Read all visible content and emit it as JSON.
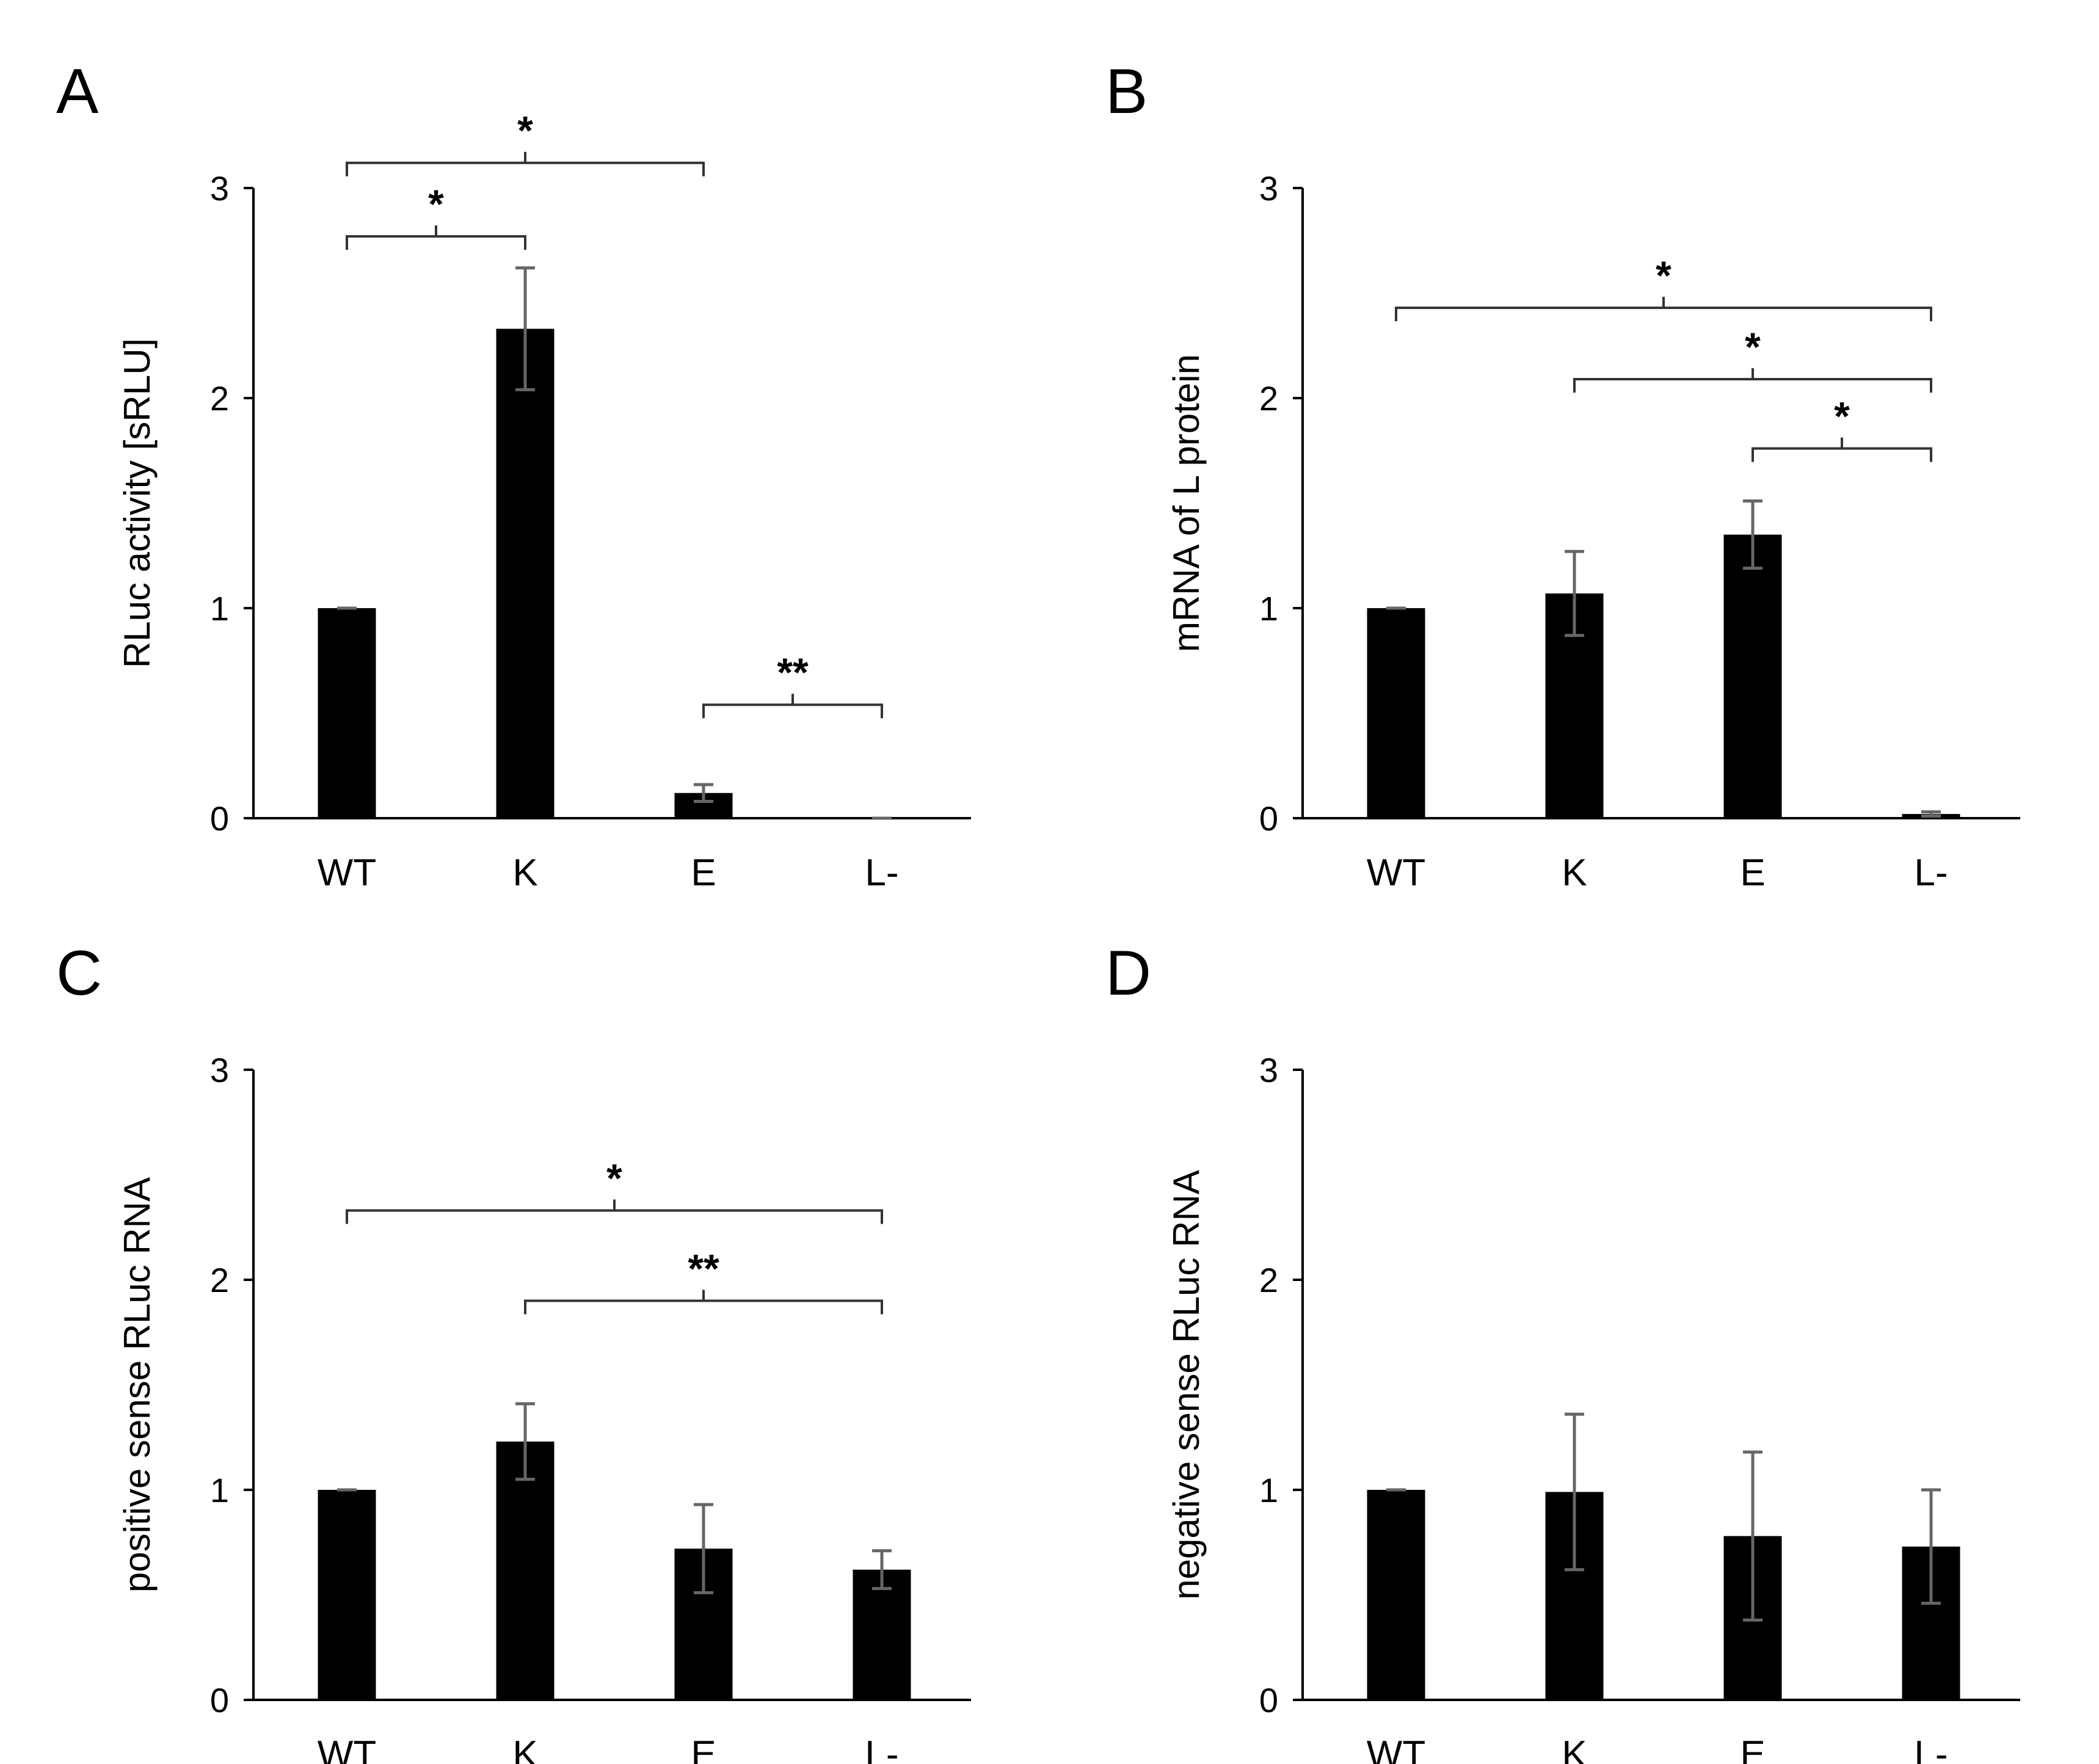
{
  "figure": {
    "panel_count": 4
  },
  "colors": {
    "bar": "#000000",
    "error_bar": "#666666",
    "axis": "#000000",
    "bracket": "#333333"
  },
  "chart_data": [
    {
      "panel": "A",
      "type": "bar",
      "title": "",
      "categories": [
        "WT",
        "K",
        "E",
        "L-"
      ],
      "values": [
        1.0,
        2.33,
        0.12,
        0.0
      ],
      "errors": [
        0.0,
        0.29,
        0.04,
        0.0
      ],
      "xlabel": "",
      "ylabel": "RLuc activity [sRLU]",
      "ylim": [
        0,
        3
      ],
      "yticks": [
        0,
        1,
        2,
        3
      ],
      "grid": false,
      "legend": "none",
      "significance": [
        {
          "from": 0,
          "to": 2,
          "label": "*",
          "level": 3.12
        },
        {
          "from": 0,
          "to": 1,
          "label": "*",
          "level": 2.77
        },
        {
          "from": 2,
          "to": 3,
          "label": "**",
          "level": 0.54
        }
      ]
    },
    {
      "panel": "B",
      "type": "bar",
      "title": "",
      "categories": [
        "WT",
        "K",
        "E",
        "L-"
      ],
      "values": [
        1.0,
        1.07,
        1.35,
        0.02
      ],
      "errors": [
        0.0,
        0.2,
        0.16,
        0.01
      ],
      "xlabel": "",
      "ylabel": "mRNA of L protein",
      "ylim": [
        0,
        3
      ],
      "yticks": [
        0,
        1,
        2,
        3
      ],
      "grid": false,
      "legend": "none",
      "significance": [
        {
          "from": 0,
          "to": 3,
          "label": "*",
          "level": 2.43
        },
        {
          "from": 1,
          "to": 3,
          "label": "*",
          "level": 2.09
        },
        {
          "from": 2,
          "to": 3,
          "label": "*",
          "level": 1.76
        }
      ]
    },
    {
      "panel": "C",
      "type": "bar",
      "title": "",
      "categories": [
        "WT",
        "K",
        "E",
        "L-"
      ],
      "values": [
        1.0,
        1.23,
        0.72,
        0.62
      ],
      "errors": [
        0.0,
        0.18,
        0.21,
        0.09
      ],
      "xlabel": "",
      "ylabel": "positive sense RLuc RNA",
      "ylim": [
        0,
        3
      ],
      "yticks": [
        0,
        1,
        2,
        3
      ],
      "grid": false,
      "legend": "none",
      "significance": [
        {
          "from": 0,
          "to": 3,
          "label": "*",
          "level": 2.33
        },
        {
          "from": 1,
          "to": 3,
          "label": "**",
          "level": 1.9
        }
      ]
    },
    {
      "panel": "D",
      "type": "bar",
      "title": "",
      "categories": [
        "WT",
        "K",
        "E",
        "L-"
      ],
      "values": [
        1.0,
        0.99,
        0.78,
        0.73
      ],
      "errors": [
        0.0,
        0.37,
        0.4,
        0.27
      ],
      "xlabel": "",
      "ylabel": "negative sense RLuc RNA",
      "ylim": [
        0,
        3
      ],
      "yticks": [
        0,
        1,
        2,
        3
      ],
      "grid": false,
      "legend": "none",
      "significance": []
    }
  ]
}
